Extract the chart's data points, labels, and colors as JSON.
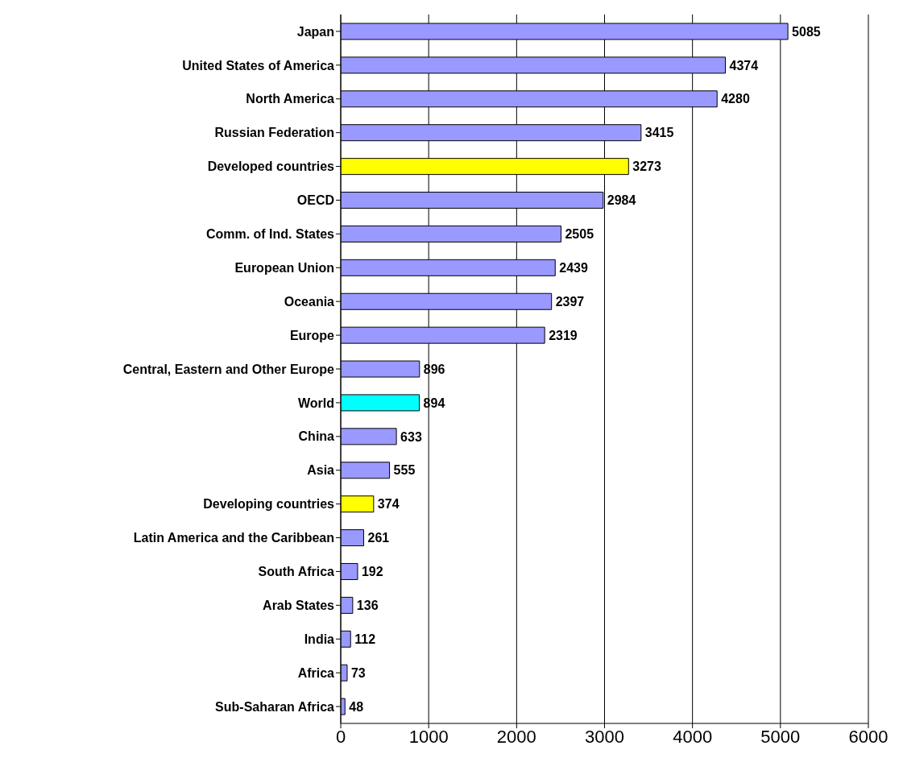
{
  "chart_data": {
    "type": "bar",
    "orientation": "horizontal",
    "categories": [
      "Japan",
      "United States of America",
      "North America",
      "Russian Federation",
      "Developed countries",
      "OECD",
      "Comm. of Ind. States",
      "European Union",
      "Oceania",
      "Europe",
      "Central, Eastern and Other Europe",
      "World",
      "China",
      "Asia",
      "Developing countries",
      "Latin America and the Caribbean",
      "South Africa",
      "Arab States",
      "India",
      "Africa",
      "Sub-Saharan Africa"
    ],
    "values": [
      5085,
      4374,
      4280,
      3415,
      3273,
      2984,
      2505,
      2439,
      2397,
      2319,
      896,
      894,
      633,
      555,
      374,
      261,
      192,
      136,
      112,
      73,
      48
    ],
    "colors": [
      "#9999ff",
      "#9999ff",
      "#9999ff",
      "#9999ff",
      "#ffff00",
      "#9999ff",
      "#9999ff",
      "#9999ff",
      "#9999ff",
      "#9999ff",
      "#9999ff",
      "#00ffff",
      "#9999ff",
      "#9999ff",
      "#ffff00",
      "#9999ff",
      "#9999ff",
      "#9999ff",
      "#9999ff",
      "#9999ff",
      "#9999ff"
    ],
    "xlim": [
      0,
      6000
    ],
    "xticks": [
      0,
      1000,
      2000,
      3000,
      4000,
      5000,
      6000
    ],
    "grid": "x",
    "data_labels": true
  }
}
